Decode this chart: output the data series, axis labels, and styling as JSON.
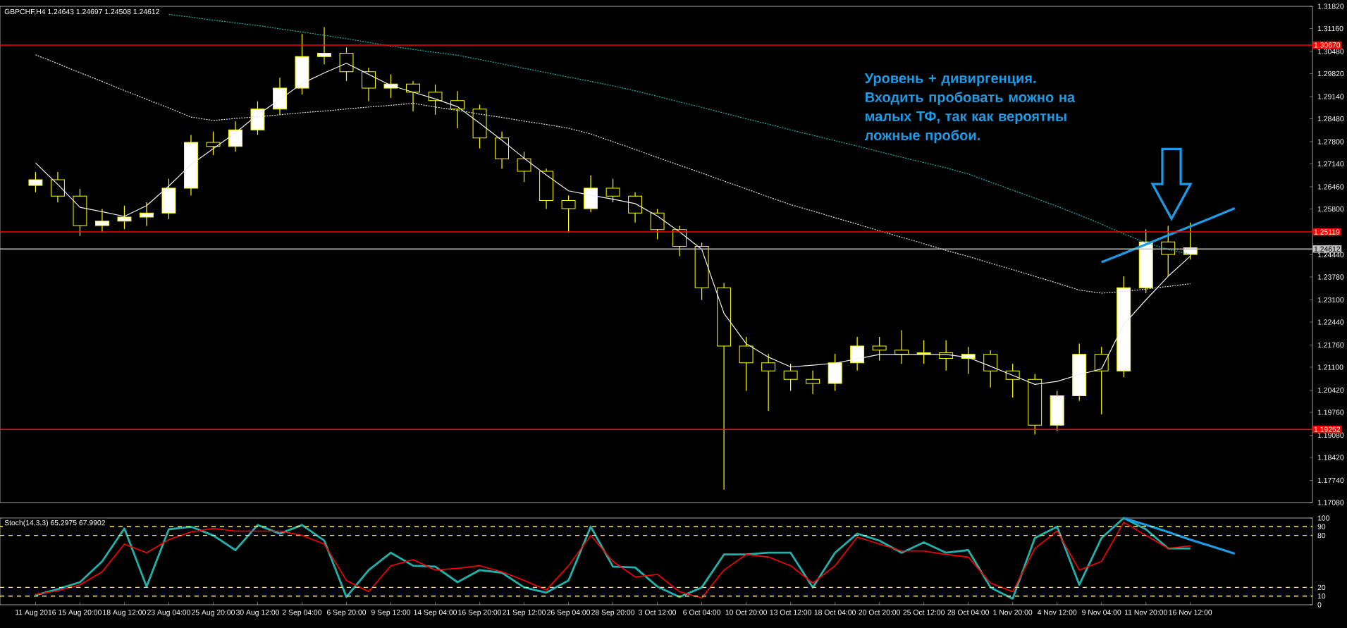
{
  "chart_data": [
    {
      "type": "candlestick",
      "title": "GBPCHF,H4  1.24643 1.24697 1.24508 1.24612",
      "annotations": [
        "Уровень + дивиргенция. Входить пробовать можно на малых ТФ, так как вероятны ложные пробои."
      ],
      "color": "#ffff00",
      "tick_labels": "y",
      "categories": [
        null,
        null,
        null,
        null,
        null,
        null,
        null,
        null,
        null,
        null,
        null,
        null,
        null,
        null,
        null,
        null,
        null,
        null,
        null,
        null,
        null,
        null,
        null,
        null,
        null,
        null,
        null,
        null,
        null,
        null,
        null,
        null,
        null,
        null,
        null,
        null,
        null,
        null,
        null,
        null,
        null,
        null,
        null,
        null,
        null,
        null,
        null,
        null,
        null,
        null,
        null,
        null,
        null,
        null,
        null,
        null,
        null,
        null
      ],
      "ohlc": [
        [
          1.265,
          1.269,
          1.263,
          1.2667
        ],
        [
          1.2667,
          1.269,
          1.26,
          1.2618
        ],
        [
          1.2618,
          1.264,
          1.25,
          1.2531
        ],
        [
          1.2531,
          1.258,
          1.251,
          1.2544
        ],
        [
          1.2544,
          1.259,
          1.252,
          1.2556
        ],
        [
          1.2556,
          1.26,
          1.253,
          1.2568
        ],
        [
          1.2568,
          1.267,
          1.255,
          1.2642
        ],
        [
          1.2642,
          1.28,
          1.262,
          1.2778
        ],
        [
          1.2778,
          1.281,
          1.274,
          1.2766
        ],
        [
          1.2766,
          1.284,
          1.275,
          1.2815
        ],
        [
          1.2815,
          1.29,
          1.28,
          1.2877
        ],
        [
          1.2877,
          1.297,
          1.286,
          1.2939
        ],
        [
          1.2939,
          1.31,
          1.292,
          1.3033
        ],
        [
          1.3033,
          1.312,
          1.301,
          1.3043
        ],
        [
          1.3043,
          1.306,
          1.296,
          1.2988
        ],
        [
          1.2988,
          1.3,
          1.29,
          1.2939
        ],
        [
          1.2939,
          1.298,
          1.291,
          1.2951
        ],
        [
          1.2951,
          1.296,
          1.287,
          1.2927
        ],
        [
          1.2927,
          1.295,
          1.286,
          1.2902
        ],
        [
          1.2902,
          1.293,
          1.282,
          1.2877
        ],
        [
          1.2877,
          1.289,
          1.276,
          1.2791
        ],
        [
          1.2791,
          1.281,
          1.27,
          1.2729
        ],
        [
          1.2729,
          1.275,
          1.266,
          1.2692
        ],
        [
          1.2692,
          1.27,
          1.258,
          1.2605
        ],
        [
          1.2605,
          1.262,
          1.251,
          1.2581
        ],
        [
          1.2581,
          1.268,
          1.257,
          1.2642
        ],
        [
          1.2642,
          1.267,
          1.26,
          1.2618
        ],
        [
          1.2618,
          1.263,
          1.254,
          1.2568
        ],
        [
          1.2568,
          1.258,
          1.249,
          1.2519
        ],
        [
          1.2519,
          1.253,
          1.244,
          1.2469
        ],
        [
          1.2469,
          1.248,
          1.231,
          1.2346
        ],
        [
          1.2346,
          1.236,
          1.1746,
          1.2173
        ],
        [
          1.2173,
          1.22,
          1.204,
          1.2123
        ],
        [
          1.2123,
          1.215,
          1.198,
          1.2099
        ],
        [
          1.2099,
          1.212,
          1.204,
          1.2074
        ],
        [
          1.2074,
          1.21,
          1.203,
          1.2062
        ],
        [
          1.2062,
          1.215,
          1.204,
          1.2123
        ],
        [
          1.2123,
          1.22,
          1.21,
          1.2173
        ],
        [
          1.2173,
          1.22,
          1.213,
          1.2161
        ],
        [
          1.2161,
          1.222,
          1.212,
          1.2148
        ],
        [
          1.2148,
          1.219,
          1.212,
          1.2153
        ],
        [
          1.2153,
          1.219,
          1.21,
          1.2136
        ],
        [
          1.2136,
          1.217,
          1.209,
          1.2148
        ],
        [
          1.2148,
          1.216,
          1.205,
          1.2099
        ],
        [
          1.2099,
          1.212,
          1.202,
          1.2074
        ],
        [
          1.2074,
          1.209,
          1.191,
          1.1938
        ],
        [
          1.1938,
          1.204,
          1.192,
          1.2025
        ],
        [
          1.2025,
          1.218,
          1.201,
          1.2148
        ],
        [
          1.2148,
          1.217,
          1.197,
          1.2099
        ],
        [
          1.2099,
          1.238,
          1.208,
          1.2346
        ],
        [
          1.2346,
          1.252,
          1.233,
          1.2482
        ],
        [
          1.2482,
          1.253,
          1.238,
          1.2445
        ],
        [
          1.2445,
          1.254,
          1.243,
          1.2465
        ],
        null,
        null,
        null,
        null,
        null
      ],
      "series": [
        {
          "type": "line",
          "color": "#20b2aa",
          "line_style": "dotted",
          "values": [
            null,
            null,
            null,
            null,
            null,
            null,
            1.3158,
            1.315,
            1.3141,
            1.3133,
            1.3125,
            1.3115,
            1.3106,
            1.3096,
            1.3086,
            1.3075,
            1.3064,
            1.3054,
            1.3045,
            1.3037,
            1.3024,
            1.3011,
            1.2998,
            1.2985,
            1.2972,
            1.2959,
            1.2946,
            1.2931,
            1.2915,
            1.2898,
            1.2882,
            1.2865,
            1.2848,
            1.2832,
            1.2815,
            1.2799,
            1.2783,
            1.2767,
            1.275,
            1.2734,
            1.2718,
            1.2702,
            1.2684,
            1.266,
            1.2636,
            1.2612,
            1.2588,
            1.2562,
            1.2535,
            1.2506,
            1.248,
            1.246,
            1.2445,
            null,
            null,
            null,
            null,
            null
          ]
        },
        {
          "type": "line",
          "color": "#e0e0e0",
          "line_style": "dotted",
          "values": [
            1.3038,
            1.3012,
            1.2985,
            1.2959,
            1.2932,
            1.2906,
            1.288,
            1.2853,
            1.2843,
            1.2849,
            1.2854,
            1.286,
            1.2866,
            1.2871,
            1.2877,
            1.2883,
            1.2888,
            1.2894,
            1.2883,
            1.2873,
            1.2862,
            1.2852,
            1.2841,
            1.2831,
            1.282,
            1.2803,
            1.278,
            1.2757,
            1.2733,
            1.271,
            1.2687,
            1.2663,
            1.264,
            1.2616,
            1.2593,
            1.2574,
            1.2554,
            1.2535,
            1.2515,
            1.2496,
            1.2477,
            1.2457,
            1.2439,
            1.2419,
            1.24,
            1.238,
            1.236,
            1.2339,
            1.233,
            1.2335,
            1.2342,
            1.235,
            1.2358,
            null,
            null,
            null,
            null,
            null
          ]
        },
        {
          "type": "line",
          "color": "#f0f0f0",
          "line_style": "solid",
          "values": [
            1.2717,
            1.2653,
            1.2585,
            1.2572,
            1.2558,
            1.259,
            1.2648,
            1.2712,
            1.2759,
            1.2806,
            1.286,
            1.2905,
            1.2953,
            1.2984,
            1.3013,
            1.298,
            1.2947,
            1.2927,
            1.2907,
            1.2884,
            1.2835,
            1.2784,
            1.2731,
            1.2681,
            1.2634,
            1.2621,
            1.2609,
            1.2596,
            1.2559,
            1.2512,
            1.246,
            1.227,
            1.218,
            1.214,
            1.2111,
            1.2116,
            1.2122,
            1.2135,
            1.2148,
            1.2148,
            1.2148,
            1.2148,
            1.2139,
            1.2113,
            1.2086,
            1.2059,
            1.2068,
            1.2088,
            1.2105,
            1.2237,
            1.231,
            1.238,
            1.244,
            null,
            null,
            null,
            null,
            null
          ]
        },
        {
          "type": "line",
          "color": "#1e9be6",
          "line_style": "solid",
          "values": [
            null,
            null,
            null,
            null,
            null,
            null,
            null,
            null,
            null,
            null,
            null,
            null,
            null,
            null,
            null,
            null,
            null,
            null,
            null,
            null,
            null,
            null,
            null,
            null,
            null,
            null,
            null,
            null,
            null,
            null,
            null,
            null,
            null,
            null,
            null,
            null,
            null,
            null,
            null,
            null,
            null,
            null,
            null,
            null,
            null,
            null,
            null,
            null,
            1.2422,
            1.2448,
            1.2475,
            1.2502,
            1.2528,
            1.2555,
            1.2582,
            null,
            null,
            null
          ]
        }
      ],
      "ylim": [
        1.1708,
        1.3182
      ],
      "yticks": [
        {
          "value": 1.1708,
          "label": "1.17080"
        },
        {
          "value": 1.1774,
          "label": "1.17740"
        },
        {
          "value": 1.1842,
          "label": "1.18420"
        },
        {
          "value": 1.1908,
          "label": "1.19080"
        },
        {
          "value": 1.1976,
          "label": "1.19760"
        },
        {
          "value": 1.2042,
          "label": "1.20420"
        },
        {
          "value": 1.211,
          "label": "1.21100"
        },
        {
          "value": 1.2176,
          "label": "1.21760"
        },
        {
          "value": 1.2244,
          "label": "1.22440"
        },
        {
          "value": 1.231,
          "label": "1.23100"
        },
        {
          "value": 1.2378,
          "label": "1.23780"
        },
        {
          "value": 1.2444,
          "label": "1.24440"
        },
        {
          "value": 1.258,
          "label": "1.25800"
        },
        {
          "value": 1.2646,
          "label": "1.26460"
        },
        {
          "value": 1.2714,
          "label": "1.27140"
        },
        {
          "value": 1.278,
          "label": "1.27800"
        },
        {
          "value": 1.2848,
          "label": "1.28480"
        },
        {
          "value": 1.2914,
          "label": "1.29140"
        },
        {
          "value": 1.2982,
          "label": "1.29820"
        },
        {
          "value": 1.3048,
          "label": "1.30480"
        },
        {
          "value": 1.3116,
          "label": "1.31160"
        },
        {
          "value": 1.3182,
          "label": "1.31820"
        }
      ],
      "ref_lines": [
        {
          "axis": "y",
          "value": 1.3067,
          "label": "1.30670",
          "color": "#ff0000"
        },
        {
          "axis": "y",
          "value": 1.25119,
          "label": "1.25119",
          "color": "#ff0000"
        },
        {
          "axis": "y",
          "value": 1.24612,
          "label": "1.24612",
          "color": "#c0c0c0"
        },
        {
          "axis": "y",
          "value": 1.19252,
          "label": "1.19252",
          "color": "#ff0000"
        }
      ]
    },
    {
      "type": "line",
      "title": "Stoch(14,3,3) 65.2975 67.9902",
      "categories": [
        "11 Aug 2016",
        null,
        "15 Aug 20:00",
        null,
        "18 Aug 12:00",
        null,
        "23 Aug 04:00",
        null,
        "25 Aug 20:00",
        null,
        "30 Aug 12:00",
        null,
        "2 Sep 04:00",
        null,
        "6 Sep 20:00",
        null,
        "9 Sep 12:00",
        null,
        "14 Sep 04:00",
        null,
        "16 Sep 20:00",
        null,
        "21 Sep 12:00",
        null,
        "26 Sep 04:00",
        null,
        "28 Sep 20:00",
        null,
        "3 Oct 12:00",
        null,
        "6 Oct 04:00",
        null,
        "10 Oct 20:00",
        null,
        "13 Oct 12:00",
        null,
        "18 Oct 04:00",
        null,
        "20 Oct 20:00",
        null,
        "25 Oct 12:00",
        null,
        "28 Oct 04:00",
        null,
        "1 Nov 20:00",
        null,
        "4 Nov 12:00",
        null,
        "9 Nov 04:00",
        null,
        "11 Nov 20:00",
        null,
        "16 Nov 12:00",
        null,
        null,
        null,
        null,
        null
      ],
      "series": [
        {
          "color": "#20b2aa",
          "values": [
            11,
            18,
            26,
            50,
            88,
            21,
            87,
            90,
            80,
            63,
            92,
            82,
            92,
            74,
            9,
            40,
            60,
            45,
            44,
            26,
            40,
            37,
            20,
            14,
            28,
            90,
            44,
            43,
            21,
            9,
            20,
            58,
            58,
            60,
            60,
            20,
            60,
            82,
            74,
            60,
            72,
            60,
            63,
            20,
            7,
            77,
            90,
            23,
            77,
            100,
            87,
            65,
            65,
            null,
            null,
            null,
            null,
            null
          ]
        },
        {
          "color": "#ff0000",
          "values": [
            12,
            16,
            23,
            38,
            70,
            60,
            75,
            84,
            88,
            85,
            85,
            85,
            80,
            70,
            28,
            15,
            45,
            52,
            40,
            42,
            45,
            38,
            28,
            17,
            45,
            80,
            50,
            32,
            35,
            15,
            8,
            40,
            58,
            55,
            45,
            25,
            45,
            78,
            70,
            62,
            62,
            58,
            55,
            25,
            15,
            65,
            85,
            40,
            50,
            95,
            80,
            65,
            68,
            null,
            null,
            null,
            null,
            null
          ]
        },
        {
          "color": "#1e9be6",
          "values": [
            null,
            null,
            null,
            null,
            null,
            null,
            null,
            null,
            null,
            null,
            null,
            null,
            null,
            null,
            null,
            null,
            null,
            null,
            null,
            null,
            null,
            null,
            null,
            null,
            null,
            null,
            null,
            null,
            null,
            null,
            null,
            null,
            null,
            null,
            null,
            null,
            null,
            null,
            null,
            null,
            null,
            null,
            null,
            null,
            null,
            null,
            null,
            null,
            null,
            100,
            92,
            84,
            75,
            67,
            59,
            null,
            null,
            null
          ]
        }
      ],
      "ylim": [
        0,
        100
      ],
      "yticks": [
        0,
        10,
        20,
        80,
        90,
        100
      ],
      "ref_lines": [
        {
          "axis": "y",
          "value": 90,
          "color": "#ffff00",
          "line_style": "dashed"
        },
        {
          "axis": "y",
          "value": 80,
          "color": "#ffff00",
          "line_style": "dashed"
        },
        {
          "axis": "y",
          "value": 20,
          "color": "#ffff00",
          "line_style": "dashed"
        },
        {
          "axis": "y",
          "value": 10,
          "color": "#ffff00",
          "line_style": "dashed"
        }
      ]
    }
  ]
}
